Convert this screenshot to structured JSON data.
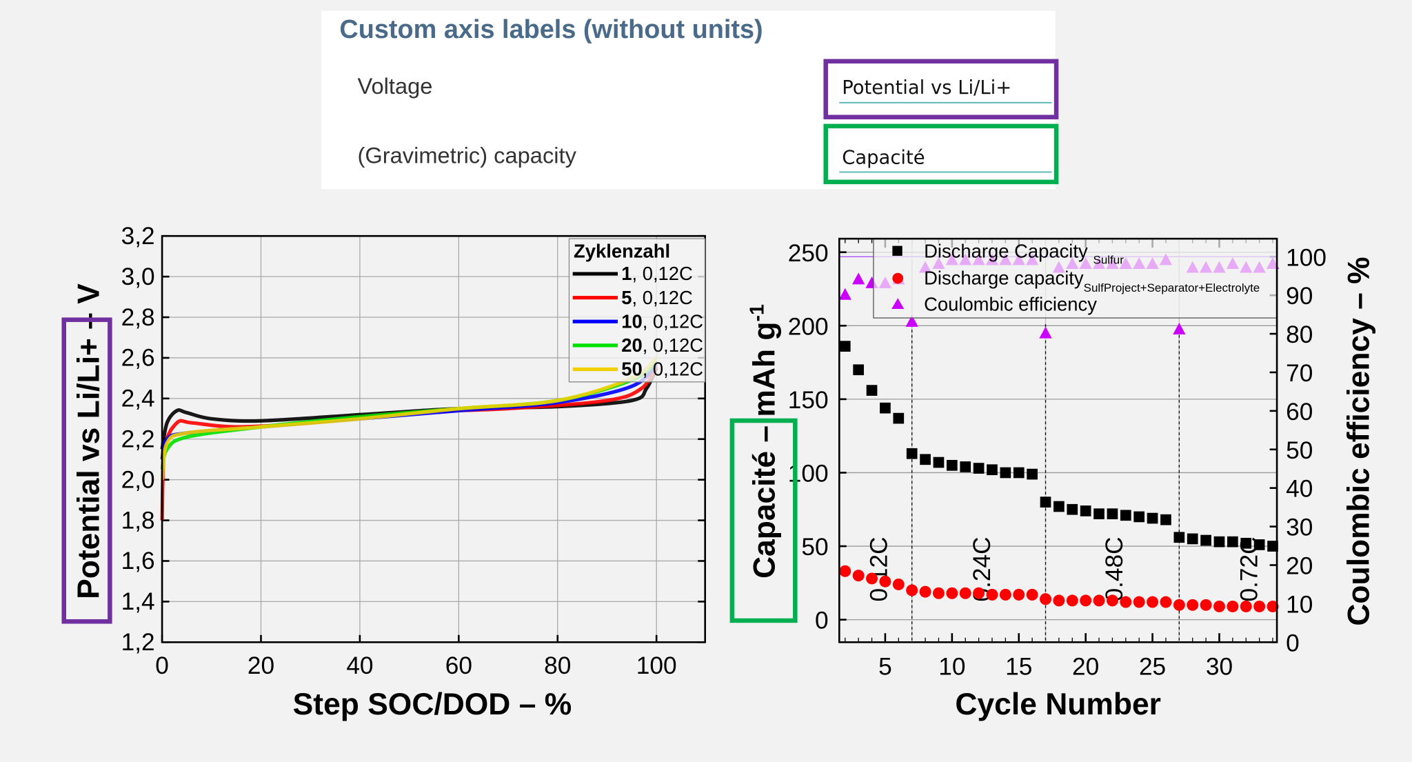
{
  "settings_panel": {
    "title": "Custom axis labels (without units)",
    "rows": [
      {
        "label": "Voltage",
        "value": "Potential vs Li/Li+",
        "highlight": "#7030a0"
      },
      {
        "label": "(Gravimetric) capacity",
        "value": "Capacité",
        "highlight": "#00b050"
      }
    ]
  },
  "chart_data": [
    {
      "type": "line",
      "xlabel": "Step SOC/DOD – %",
      "ylabel_main": "Potential vs Li/Li+",
      "ylabel_unit": " – V",
      "xlim": [
        0,
        110
      ],
      "ylim": [
        1.2,
        3.2
      ],
      "xticks": [
        "0",
        "20",
        "40",
        "60",
        "80",
        "100"
      ],
      "yticks": [
        "1,2",
        "1,4",
        "1,6",
        "1,8",
        "2,0",
        "2,2",
        "2,4",
        "2,6",
        "2,8",
        "3,0",
        "3,2"
      ],
      "grid": true,
      "legend": {
        "title": "Zyklenzahl",
        "placement": "top-right"
      },
      "series": [
        {
          "name_bold": "1",
          "name_rest": ", 0,12C",
          "color": "#000000",
          "x": [
            0,
            1,
            3,
            5,
            10,
            20,
            40,
            60,
            80,
            95,
            98,
            100
          ],
          "y": [
            2.15,
            2.28,
            2.34,
            2.33,
            2.3,
            2.29,
            2.32,
            2.35,
            2.36,
            2.39,
            2.45,
            2.55
          ]
        },
        {
          "name_bold": "5",
          "name_rest": ", 0,12C",
          "color": "#ff0000",
          "x": [
            0,
            0.5,
            3,
            6,
            15,
            30,
            50,
            70,
            90,
            97,
            100
          ],
          "y": [
            1.8,
            2.15,
            2.28,
            2.28,
            2.26,
            2.28,
            2.33,
            2.35,
            2.39,
            2.45,
            2.56
          ]
        },
        {
          "name_bold": "10",
          "name_rest": ", 0,12C",
          "color": "#0000ff",
          "x": [
            0,
            1,
            5,
            20,
            40,
            60,
            80,
            95,
            100
          ],
          "y": [
            2.1,
            2.2,
            2.23,
            2.26,
            2.3,
            2.34,
            2.38,
            2.46,
            2.57
          ]
        },
        {
          "name_bold": "20",
          "name_rest": ", 0,12C",
          "color": "#00e000",
          "x": [
            0,
            1,
            5,
            20,
            40,
            60,
            80,
            95,
            100
          ],
          "y": [
            2.05,
            2.15,
            2.21,
            2.26,
            2.31,
            2.35,
            2.39,
            2.49,
            2.58
          ]
        },
        {
          "name_bold": "50",
          "name_rest": ", 0,12C",
          "color": "#f0d000",
          "x": [
            0,
            1,
            5,
            20,
            40,
            60,
            80,
            95,
            100
          ],
          "y": [
            2.0,
            2.18,
            2.23,
            2.26,
            2.3,
            2.35,
            2.39,
            2.5,
            2.6
          ]
        }
      ]
    },
    {
      "type": "scatter",
      "xlabel": "Cycle Number",
      "ylabel_main": "Capacité",
      "ylabel_unit": " – mAh g",
      "ylabel_sup": "-1",
      "y2label": "Coulombic efficiency – %",
      "xlim": [
        1.5,
        34.3
      ],
      "ylim": [
        -15,
        255
      ],
      "y2lim": [
        0,
        100
      ],
      "xticks": [
        "5",
        "10",
        "15",
        "20",
        "25",
        "30"
      ],
      "yticks": [
        "0",
        "50",
        "100",
        "150",
        "200",
        "250"
      ],
      "y2ticks": [
        "0",
        "10",
        "20",
        "30",
        "40",
        "50",
        "60",
        "70",
        "80",
        "90",
        "100"
      ],
      "grid": true,
      "legend": {
        "placement": "top"
      },
      "rate_labels": [
        {
          "x": 4.6,
          "text": "0.12C"
        },
        {
          "x": 12.3,
          "text": "0.24C"
        },
        {
          "x": 22.2,
          "text": "0.48C"
        },
        {
          "x": 32.3,
          "text": "0.72C"
        }
      ],
      "rate_changes": [
        7,
        17,
        27
      ],
      "reference_line_y2": 100,
      "x": [
        2,
        3,
        4,
        5,
        6,
        7,
        8,
        9,
        10,
        11,
        12,
        13,
        14,
        15,
        16,
        17,
        18,
        19,
        20,
        21,
        22,
        23,
        24,
        25,
        26,
        27,
        28,
        29,
        30,
        31,
        32,
        33,
        34
      ],
      "series": [
        {
          "name": "Discharge Capacity",
          "subscript": "Sulfur",
          "marker": "square",
          "color": "#000000",
          "axis": "left",
          "values": [
            186,
            170,
            156,
            144,
            137,
            113,
            109,
            107,
            105,
            104,
            103,
            102,
            100,
            100,
            99,
            80,
            77,
            75,
            74,
            72,
            72,
            71,
            70,
            69,
            68,
            56,
            55,
            54,
            53,
            53,
            52,
            51,
            50
          ]
        },
        {
          "name": "Discharge capacity",
          "subscript": "SulfProject+Separator+Electrolyte",
          "marker": "circle",
          "color": "#ff0000",
          "axis": "left",
          "values": [
            33,
            30,
            28,
            26,
            24,
            20,
            19,
            18,
            18,
            18,
            18,
            17,
            17,
            17,
            17,
            14,
            13,
            13,
            13,
            13,
            13,
            12,
            12,
            12,
            12,
            10,
            10,
            10,
            9,
            9,
            9,
            9,
            9
          ]
        },
        {
          "name": "Coulombic efficiency",
          "marker": "triangle",
          "color": "#cc00ff",
          "axis": "right",
          "values": [
            90,
            94,
            93,
            93,
            94,
            83,
            97,
            98,
            99,
            99,
            99,
            99,
            99,
            99,
            99,
            80,
            97,
            98,
            98,
            98,
            98,
            98,
            98,
            98,
            99,
            81,
            97,
            97,
            97,
            98,
            97,
            97,
            98
          ]
        }
      ]
    }
  ]
}
